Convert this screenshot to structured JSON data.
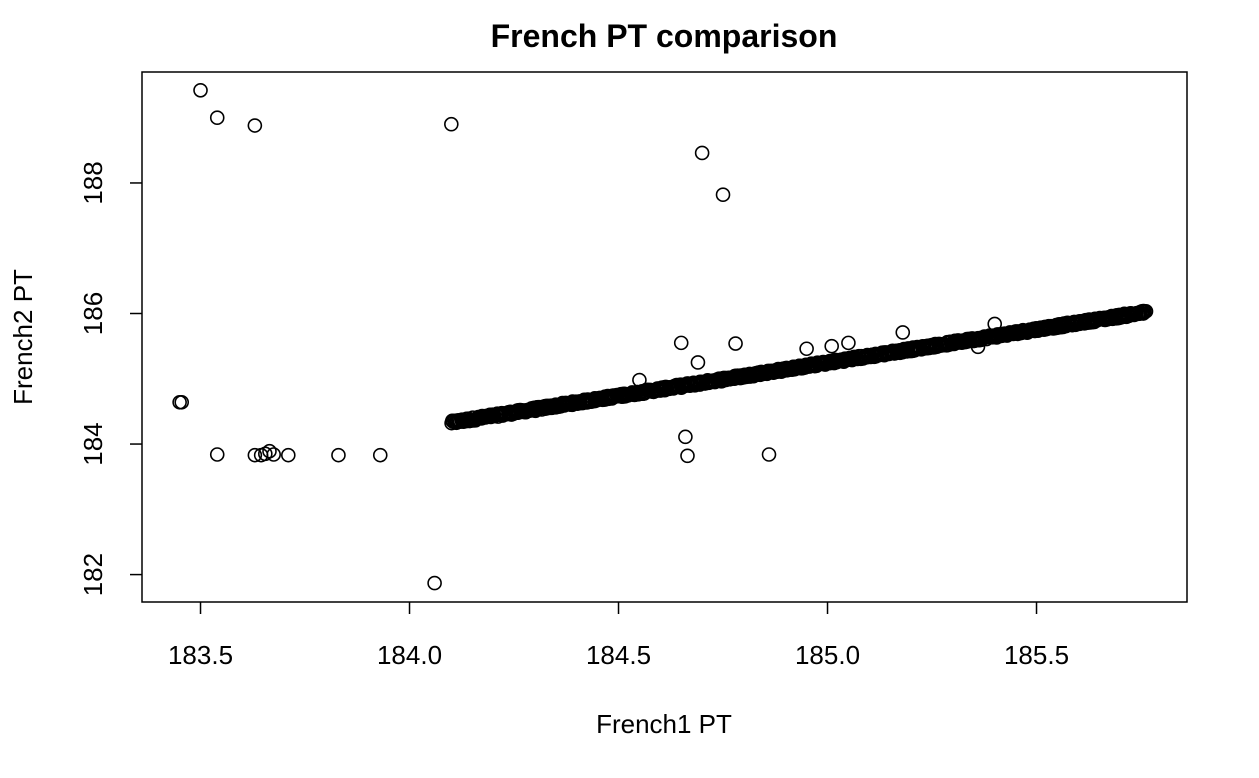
{
  "chart_data": {
    "type": "scatter",
    "title": "French PT comparison",
    "xlabel": "French1 PT",
    "ylabel": "French2 PT",
    "xlim": [
      183.36,
      185.86
    ],
    "ylim": [
      181.58,
      189.7
    ],
    "xticks": [
      183.5,
      184.0,
      184.5,
      185.0,
      185.5
    ],
    "xtick_labels": [
      "183.5",
      "184.0",
      "184.5",
      "185.0",
      "185.5"
    ],
    "yticks": [
      182,
      184,
      186,
      188
    ],
    "ytick_labels": [
      "182",
      "184",
      "186",
      "188"
    ],
    "grid": false,
    "legend": "none",
    "marker": "open-circle",
    "color": "#000000",
    "trend": {
      "description": "dense near-linear band",
      "x_start": 184.1,
      "y_start": 184.33,
      "x_end": 185.76,
      "y_end": 186.02,
      "n_points": 900,
      "noise": 0.025
    },
    "points": [
      {
        "x": 183.5,
        "y": 189.42
      },
      {
        "x": 183.54,
        "y": 189.0
      },
      {
        "x": 183.63,
        "y": 188.88
      },
      {
        "x": 184.1,
        "y": 188.9
      },
      {
        "x": 184.7,
        "y": 188.46
      },
      {
        "x": 184.75,
        "y": 187.82
      },
      {
        "x": 183.45,
        "y": 184.64
      },
      {
        "x": 183.455,
        "y": 184.64
      },
      {
        "x": 183.54,
        "y": 183.84
      },
      {
        "x": 183.63,
        "y": 183.83
      },
      {
        "x": 183.645,
        "y": 183.83
      },
      {
        "x": 183.655,
        "y": 183.85
      },
      {
        "x": 183.665,
        "y": 183.89
      },
      {
        "x": 183.675,
        "y": 183.84
      },
      {
        "x": 183.71,
        "y": 183.83
      },
      {
        "x": 183.83,
        "y": 183.83
      },
      {
        "x": 183.93,
        "y": 183.83
      },
      {
        "x": 184.06,
        "y": 181.87
      },
      {
        "x": 184.65,
        "y": 185.55
      },
      {
        "x": 184.69,
        "y": 185.25
      },
      {
        "x": 184.78,
        "y": 185.54
      },
      {
        "x": 184.66,
        "y": 184.11
      },
      {
        "x": 184.665,
        "y": 183.82
      },
      {
        "x": 184.86,
        "y": 183.84
      },
      {
        "x": 184.55,
        "y": 184.98
      },
      {
        "x": 184.95,
        "y": 185.46
      },
      {
        "x": 185.01,
        "y": 185.5
      },
      {
        "x": 185.05,
        "y": 185.55
      },
      {
        "x": 185.18,
        "y": 185.71
      },
      {
        "x": 185.36,
        "y": 185.49
      },
      {
        "x": 185.4,
        "y": 185.84
      }
    ]
  }
}
